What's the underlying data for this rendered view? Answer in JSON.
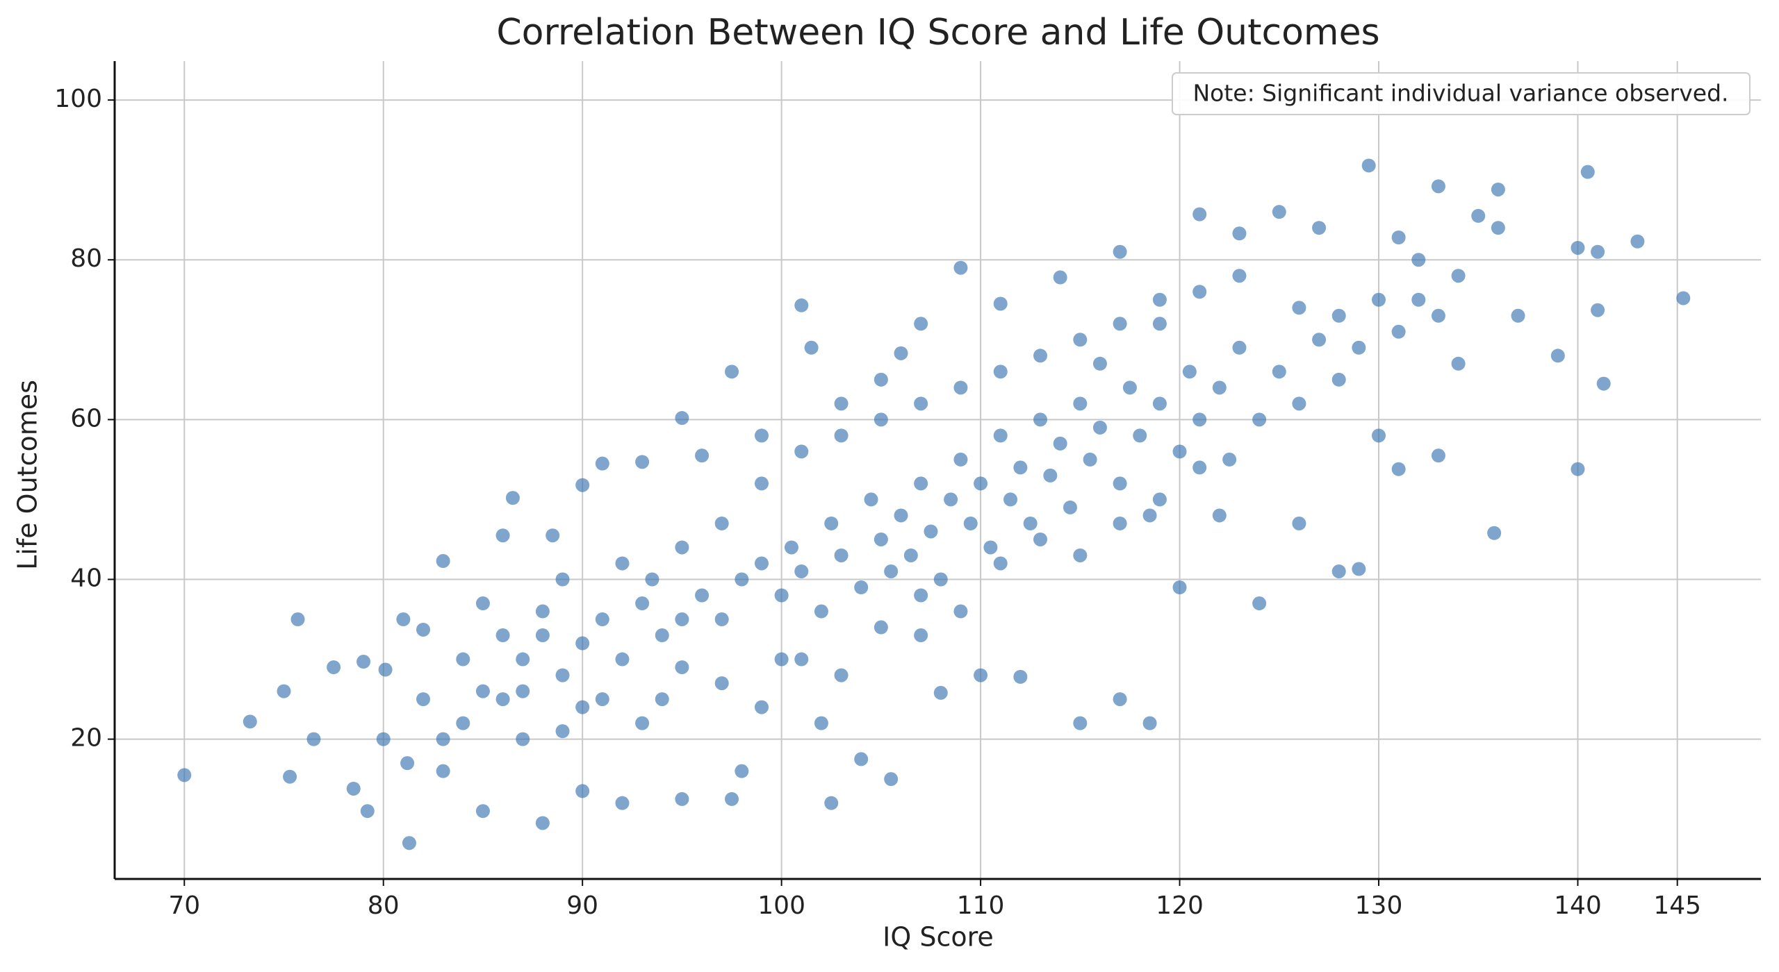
{
  "chart_data": {
    "type": "scatter",
    "title": "Correlation Between IQ Score and Life Outcomes",
    "xlabel": "IQ Score",
    "ylabel": "Life Outcomes",
    "annotation": "Note: Significant individual variance observed.",
    "color": "#3a75b0",
    "grid": true,
    "xlim": [
      66.5,
      149.2
    ],
    "ylim": [
      2.5,
      104.7
    ],
    "xticks": [
      70,
      80,
      90,
      100,
      110,
      120,
      130,
      140,
      145
    ],
    "yticks": [
      20,
      40,
      60,
      80,
      100
    ],
    "x": [
      70,
      73.3,
      75,
      75.3,
      75.7,
      76.5,
      77.5,
      78.5,
      79,
      79.2,
      80,
      80.1,
      81,
      81.3,
      81.2,
      82,
      83,
      83,
      84,
      85,
      85,
      86,
      86.5,
      87,
      88,
      88.5,
      89,
      90,
      90,
      91,
      92,
      93,
      93.5,
      94,
      95,
      95,
      96,
      97.5,
      97.5,
      98,
      99,
      100,
      101,
      101.5,
      102,
      102.5,
      103,
      104,
      105,
      105.5,
      106,
      107,
      107,
      108,
      109,
      110,
      111,
      112,
      114,
      115,
      116,
      117,
      117,
      118.5,
      119,
      120,
      121,
      122,
      123,
      124,
      125,
      126,
      127,
      128,
      129,
      129.5,
      130,
      131,
      132,
      133,
      133,
      134,
      135,
      135.8,
      136,
      137,
      139,
      140,
      140,
      140.5,
      141,
      141,
      141.3,
      143,
      145.3,
      136,
      131,
      126,
      128,
      86,
      87,
      88,
      89,
      90,
      91,
      92,
      93,
      94,
      95,
      96,
      97,
      98,
      99,
      100,
      100.5,
      101,
      102,
      102.5,
      103,
      104,
      104.5,
      105,
      105.5,
      106,
      106.5,
      107,
      107.5,
      108,
      108.5,
      109,
      109.5,
      110,
      110.5,
      111,
      111.5,
      112,
      112.5,
      113,
      113.5,
      114,
      114.5,
      115,
      115.5,
      116,
      117,
      117.5,
      118,
      118.5,
      119,
      120,
      120.5,
      121,
      122,
      122.5,
      123,
      124,
      125,
      126,
      127,
      128,
      129,
      130,
      131,
      132,
      133,
      134,
      91,
      93,
      95,
      97,
      99,
      101,
      103,
      105,
      107,
      109,
      111,
      113,
      115,
      117,
      119,
      121,
      95,
      97,
      99,
      101,
      103,
      105,
      107,
      109,
      111,
      113,
      115,
      117,
      119,
      121,
      123,
      84,
      85,
      86,
      87,
      88,
      89,
      90,
      92,
      82,
      83
    ],
    "values": [
      15.5,
      22.2,
      26,
      15.3,
      35,
      20,
      29,
      13.8,
      29.7,
      11,
      20,
      28.7,
      35,
      7,
      17,
      33.7,
      42.3,
      16,
      30,
      11,
      37,
      45.5,
      50.2,
      26,
      9.5,
      45.5,
      21,
      51.8,
      13.5,
      54.5,
      12,
      54.7,
      40,
      25,
      60.2,
      12.5,
      55.5,
      66,
      12.5,
      16,
      58,
      30,
      74.3,
      69,
      22,
      12,
      62,
      17.5,
      65,
      15,
      68.3,
      72,
      33,
      25.8,
      79,
      28,
      74.5,
      27.8,
      77.8,
      22,
      67,
      81,
      25,
      22,
      75,
      39,
      85.7,
      48,
      83.3,
      37,
      86,
      47,
      84,
      41,
      41.3,
      91.8,
      58,
      53.8,
      75,
      89.2,
      55.5,
      67,
      85.5,
      45.8,
      88.8,
      73,
      68,
      81.5,
      53.8,
      91,
      81,
      73.7,
      64.5,
      82.3,
      75.2,
      84,
      82.8,
      74,
      65,
      25,
      30,
      33,
      28,
      32,
      35,
      30,
      37,
      33,
      29,
      38,
      35,
      40,
      42,
      38,
      44,
      41,
      36,
      47,
      43,
      39,
      50,
      45,
      41,
      48,
      43,
      52,
      46,
      40,
      50,
      55,
      47,
      52,
      44,
      58,
      50,
      54,
      47,
      60,
      53,
      57,
      49,
      62,
      55,
      59,
      52,
      64,
      58,
      48,
      62,
      56,
      66,
      60,
      64,
      55,
      69,
      60,
      66,
      62,
      70,
      73,
      69,
      75,
      71,
      80,
      73,
      78,
      25,
      22,
      35,
      27,
      24,
      30,
      28,
      34,
      38,
      36,
      42,
      45,
      43,
      47,
      50,
      54,
      44,
      47,
      52,
      56,
      58,
      60,
      62,
      64,
      66,
      68,
      70,
      72,
      72,
      76,
      78,
      22,
      26,
      33,
      20,
      36,
      40,
      24,
      42,
      25,
      20
    ]
  }
}
